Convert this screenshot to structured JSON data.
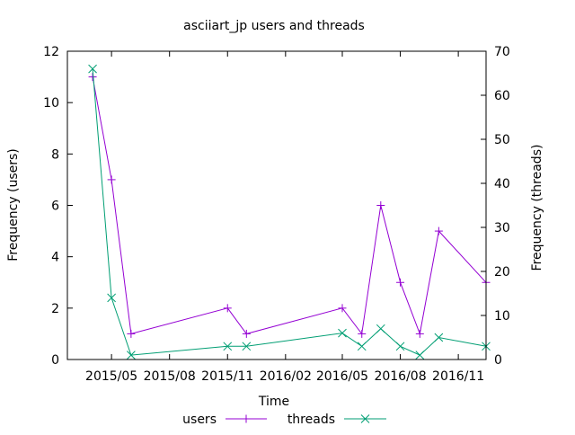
{
  "chart_data": {
    "type": "line",
    "title": "asciiart_jp users and threads",
    "xlabel": "Time",
    "ylabel": "Frequency (users)",
    "y2label": "Frequency (threads)",
    "xlim": [
      "2015-02-20",
      "2016-12-15"
    ],
    "ylim": [
      0,
      12
    ],
    "y2lim": [
      0,
      70
    ],
    "x_ticks": [
      "2015/05",
      "2015/08",
      "2015/11",
      "2016/02",
      "2016/05",
      "2016/08",
      "2016/11"
    ],
    "y_ticks": [
      0,
      2,
      4,
      6,
      8,
      10,
      12
    ],
    "y2_ticks": [
      0,
      10,
      20,
      30,
      40,
      50,
      60,
      70
    ],
    "grid": false,
    "legend": "bottom",
    "series": [
      {
        "name": "users",
        "axis": "left",
        "marker": "plus",
        "color": "#9400d3",
        "points": [
          {
            "x": "2015-04-01",
            "y": 11
          },
          {
            "x": "2015-05-01",
            "y": 7
          },
          {
            "x": "2015-06-01",
            "y": 1
          },
          {
            "x": "2015-11-01",
            "y": 2
          },
          {
            "x": "2015-12-01",
            "y": 1
          },
          {
            "x": "2016-05-01",
            "y": 2
          },
          {
            "x": "2016-06-01",
            "y": 1
          },
          {
            "x": "2016-07-01",
            "y": 6
          },
          {
            "x": "2016-08-01",
            "y": 3
          },
          {
            "x": "2016-09-01",
            "y": 1
          },
          {
            "x": "2016-10-01",
            "y": 5
          },
          {
            "x": "2016-12-15",
            "y": 3
          }
        ]
      },
      {
        "name": "threads",
        "axis": "right",
        "marker": "cross",
        "color": "#009e73",
        "points": [
          {
            "x": "2015-04-01",
            "y": 66
          },
          {
            "x": "2015-05-01",
            "y": 14
          },
          {
            "x": "2015-06-01",
            "y": 1
          },
          {
            "x": "2015-11-01",
            "y": 3
          },
          {
            "x": "2015-12-01",
            "y": 3
          },
          {
            "x": "2016-05-01",
            "y": 6
          },
          {
            "x": "2016-06-01",
            "y": 3
          },
          {
            "x": "2016-07-01",
            "y": 7
          },
          {
            "x": "2016-08-01",
            "y": 3
          },
          {
            "x": "2016-09-01",
            "y": 1
          },
          {
            "x": "2016-10-01",
            "y": 5
          },
          {
            "x": "2016-12-15",
            "y": 3
          }
        ]
      }
    ]
  }
}
